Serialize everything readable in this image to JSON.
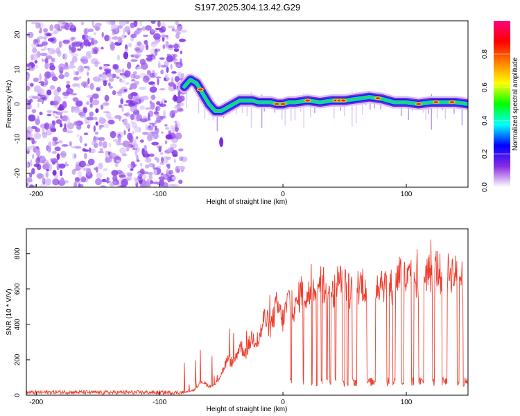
{
  "title": "S197.2025.304.13.42.G29",
  "chart_data": [
    {
      "type": "heatmap",
      "name": "spectrogram",
      "xlabel": "Height of straight line (km)",
      "ylabel": "Frequency (Hz)",
      "xlim": [
        -208,
        150
      ],
      "ylim": [
        -24,
        24
      ],
      "xticks": [
        -200,
        -100,
        0,
        100
      ],
      "yticks": [
        -20,
        -10,
        0,
        10,
        20
      ],
      "noise_region_x": [
        -208,
        -80
      ],
      "ridge": [
        [
          -80,
          5
        ],
        [
          -75,
          7
        ],
        [
          -70,
          6
        ],
        [
          -65,
          3
        ],
        [
          -60,
          0
        ],
        [
          -55,
          -2
        ],
        [
          -50,
          -2
        ],
        [
          -45,
          -1
        ],
        [
          -40,
          0
        ],
        [
          -35,
          1
        ],
        [
          -30,
          1
        ],
        [
          -25,
          1
        ],
        [
          -20,
          0.5
        ],
        [
          -15,
          0.5
        ],
        [
          -10,
          0.5
        ],
        [
          -5,
          0
        ],
        [
          0,
          0
        ],
        [
          5,
          0.5
        ],
        [
          10,
          0.5
        ],
        [
          20,
          1
        ],
        [
          30,
          0.5
        ],
        [
          40,
          1
        ],
        [
          50,
          1
        ],
        [
          60,
          1.5
        ],
        [
          70,
          2
        ],
        [
          80,
          1.5
        ],
        [
          90,
          0.5
        ],
        [
          100,
          0.5
        ],
        [
          110,
          0
        ],
        [
          120,
          0.5
        ],
        [
          130,
          0.5
        ],
        [
          140,
          0.5
        ],
        [
          150,
          0
        ]
      ],
      "colorbar": {
        "label": "Normalized spectral amplitude",
        "range": [
          0,
          1
        ],
        "ticks": [
          "0.0",
          "0.2",
          "0.4",
          "0.6",
          "0.8"
        ],
        "stops": [
          "#ffffff",
          "#8a2be2",
          "#0000ff",
          "#00ffff",
          "#00ff00",
          "#ffff00",
          "#ff8000",
          "#ff0000",
          "#ff0080"
        ]
      }
    },
    {
      "type": "line",
      "name": "snr",
      "xlabel": "Height of straight line (km)",
      "ylabel": "SNR (10 * V/V)",
      "xlim": [
        -208,
        150
      ],
      "ylim": [
        0,
        940
      ],
      "xticks": [
        -200,
        -100,
        0,
        100
      ],
      "yticks": [
        0,
        200,
        400,
        600,
        800
      ],
      "color": "#ef3b2c",
      "series": [
        {
          "name": "SNR",
          "x": [
            -208,
            -180,
            -150,
            -120,
            -90,
            -80,
            -72,
            -66,
            -60,
            -55,
            -50,
            -45,
            -40,
            -35,
            -30,
            -25,
            -20,
            -15,
            -10,
            -5,
            0,
            5,
            10,
            15,
            20,
            25,
            30,
            35,
            40,
            45,
            50,
            55,
            60,
            65,
            70,
            75,
            80,
            85,
            90,
            95,
            100,
            105,
            110,
            115,
            120,
            125,
            130,
            135,
            140,
            145,
            150
          ],
          "values": [
            15,
            18,
            15,
            16,
            15,
            15,
            30,
            80,
            50,
            60,
            120,
            200,
            180,
            280,
            240,
            330,
            300,
            440,
            380,
            510,
            420,
            560,
            480,
            600,
            550,
            620,
            640,
            600,
            570,
            650,
            620,
            580,
            610,
            640,
            560,
            620,
            650,
            600,
            620,
            710,
            640,
            680,
            610,
            700,
            690,
            720,
            650,
            700,
            680,
            660,
            640
          ]
        }
      ],
      "dropouts": [
        {
          "x": [
            6,
            7
          ]
        },
        {
          "x": [
            16,
            17
          ]
        },
        {
          "x": [
            23,
            24
          ]
        },
        {
          "x": [
            27,
            28
          ]
        },
        {
          "x": [
            31,
            32
          ]
        },
        {
          "x": [
            35,
            36
          ]
        },
        {
          "x": [
            38,
            39
          ]
        },
        {
          "x": [
            42,
            43
          ]
        },
        {
          "x": [
            48,
            50
          ]
        },
        {
          "x": [
            52,
            53
          ]
        },
        {
          "x": [
            56,
            60
          ]
        },
        {
          "x": [
            68,
            75
          ]
        },
        {
          "x": [
            84,
            86
          ]
        },
        {
          "x": [
            89,
            91
          ]
        },
        {
          "x": [
            96,
            98
          ]
        },
        {
          "x": [
            104,
            106
          ]
        },
        {
          "x": [
            110,
            114
          ]
        },
        {
          "x": [
            121,
            123
          ]
        },
        {
          "x": [
            129,
            133
          ]
        },
        {
          "x": [
            141,
            143
          ]
        },
        {
          "x": [
            146,
            150
          ]
        }
      ]
    }
  ]
}
